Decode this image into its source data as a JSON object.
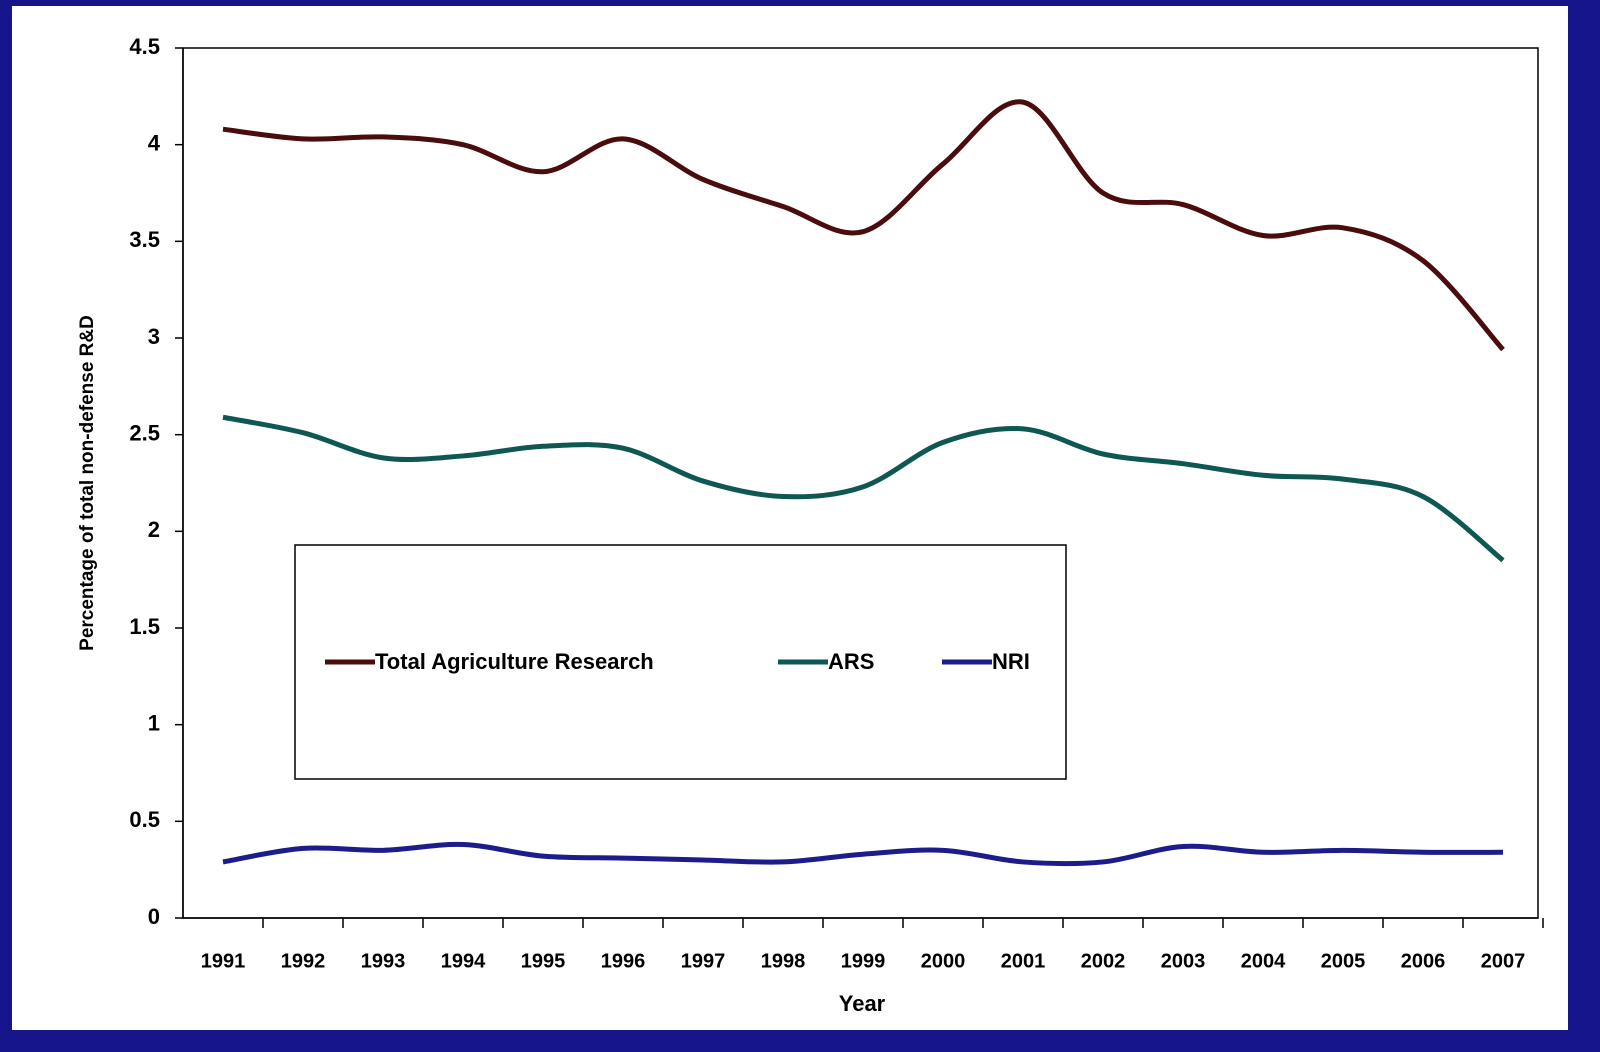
{
  "chart_data": {
    "type": "line",
    "x_label": "Year",
    "y_label": "Percentage of total non-defense R&D",
    "categories": [
      "1991",
      "1992",
      "1993",
      "1994",
      "1995",
      "1996",
      "1997",
      "1998",
      "1999",
      "2000",
      "2001",
      "2002",
      "2003",
      "2004",
      "2005",
      "2006",
      "2007"
    ],
    "series": [
      {
        "name": "Total Agriculture Research",
        "color": "#4a0c0c",
        "values": [
          4.08,
          4.03,
          4.04,
          4.0,
          3.86,
          4.03,
          3.82,
          3.68,
          3.55,
          3.9,
          4.22,
          3.75,
          3.69,
          3.53,
          3.57,
          3.4,
          2.94
        ]
      },
      {
        "name": "ARS",
        "color": "#0f5752",
        "values": [
          2.59,
          2.51,
          2.38,
          2.39,
          2.44,
          2.43,
          2.26,
          2.18,
          2.23,
          2.46,
          2.53,
          2.4,
          2.35,
          2.29,
          2.27,
          2.18,
          1.85
        ]
      },
      {
        "name": "NRI",
        "color": "#1c1c8a",
        "values": [
          0.29,
          0.36,
          0.35,
          0.38,
          0.32,
          0.31,
          0.3,
          0.29,
          0.33,
          0.35,
          0.29,
          0.29,
          0.37,
          0.34,
          0.35,
          0.34,
          0.34
        ]
      }
    ],
    "ylim": [
      0,
      4.5
    ],
    "yticks": [
      0,
      0.5,
      1,
      1.5,
      2,
      2.5,
      3,
      3.5,
      4,
      4.5
    ],
    "grid": false,
    "legend": "center"
  }
}
